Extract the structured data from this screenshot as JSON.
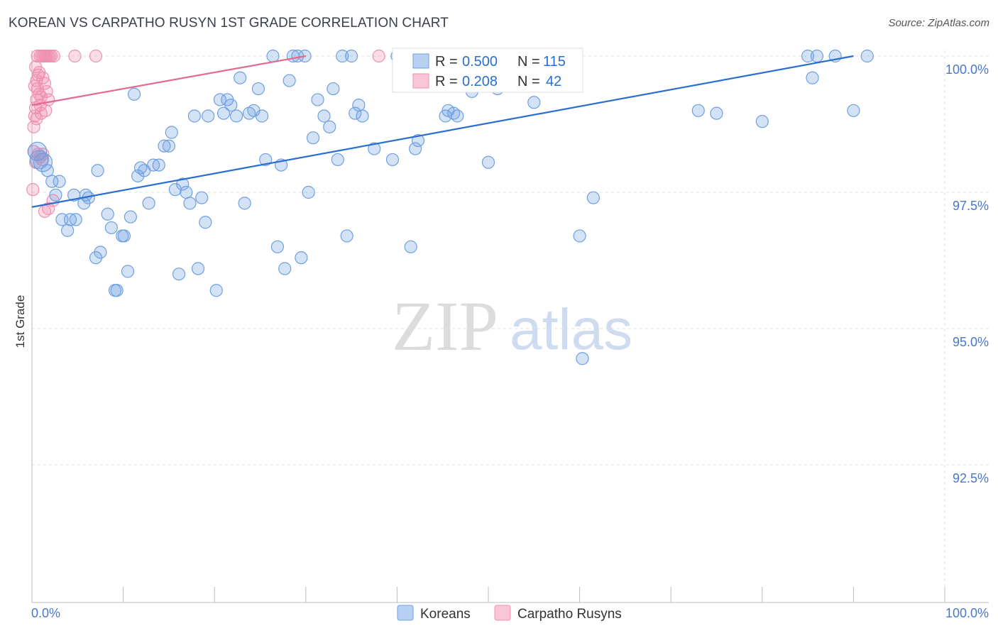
{
  "chart_data": {
    "type": "scatter",
    "title": "KOREAN VS CARPATHO RUSYN 1ST GRADE CORRELATION CHART",
    "source": "Source: ZipAtlas.com",
    "watermark": {
      "zip": "ZIP",
      "atlas": "atlas"
    },
    "xlabel": "",
    "ylabel": "1st Grade",
    "xlim": [
      0,
      100
    ],
    "ylim": [
      90.3,
      100.2
    ],
    "x_tick_labels": [
      {
        "value": 0,
        "label": "0.0%"
      },
      {
        "value": 100,
        "label": "100.0%"
      }
    ],
    "x_minor_ticks": [
      0,
      10,
      20,
      30,
      40,
      50,
      60,
      70,
      80,
      90,
      100
    ],
    "y_ticks": [
      {
        "value": 100.0,
        "label": "100.0%"
      },
      {
        "value": 97.5,
        "label": "97.5%"
      },
      {
        "value": 95.0,
        "label": "95.0%"
      },
      {
        "value": 92.5,
        "label": "92.5%"
      }
    ],
    "grid": true,
    "stats": [
      {
        "r_label": "R = ",
        "r_value": "0.500",
        "n_label": "N = ",
        "n_value": "115"
      },
      {
        "r_label": "R = ",
        "r_value": "0.208",
        "n_label": "N = ",
        "n_value": "42"
      }
    ],
    "series": [
      {
        "name": "Koreans",
        "color": "#6fa0e0",
        "line_color": "#2a6fcf",
        "trend": {
          "x": [
            0,
            90
          ],
          "y": [
            97.23,
            100.0
          ]
        },
        "points": [
          [
            0.6,
            98.25
          ],
          [
            0.8,
            98.1
          ],
          [
            1.2,
            98.05
          ],
          [
            1.7,
            97.9
          ],
          [
            2.2,
            97.7
          ],
          [
            2.6,
            97.45
          ],
          [
            3.0,
            97.7
          ],
          [
            3.3,
            97.0
          ],
          [
            3.9,
            96.8
          ],
          [
            4.6,
            97.45
          ],
          [
            4.2,
            97.0
          ],
          [
            4.8,
            97.0
          ],
          [
            5.7,
            97.3
          ],
          [
            5.9,
            97.45
          ],
          [
            6.2,
            97.4
          ],
          [
            7.0,
            96.3
          ],
          [
            7.5,
            96.4
          ],
          [
            7.2,
            97.9
          ],
          [
            8.3,
            97.1
          ],
          [
            8.7,
            96.85
          ],
          [
            9.1,
            95.7
          ],
          [
            9.3,
            95.7
          ],
          [
            9.9,
            96.7
          ],
          [
            10.1,
            96.7
          ],
          [
            10.5,
            96.05
          ],
          [
            10.8,
            97.05
          ],
          [
            11.2,
            99.3
          ],
          [
            11.6,
            97.8
          ],
          [
            11.9,
            97.95
          ],
          [
            12.3,
            97.9
          ],
          [
            12.8,
            97.3
          ],
          [
            13.3,
            98.0
          ],
          [
            13.9,
            98.0
          ],
          [
            14.5,
            98.35
          ],
          [
            15.0,
            98.35
          ],
          [
            15.3,
            98.6
          ],
          [
            15.7,
            97.55
          ],
          [
            16.1,
            96.0
          ],
          [
            16.5,
            97.65
          ],
          [
            16.9,
            97.5
          ],
          [
            17.3,
            97.3
          ],
          [
            17.8,
            98.9
          ],
          [
            18.2,
            96.1
          ],
          [
            18.6,
            97.4
          ],
          [
            19.0,
            96.95
          ],
          [
            19.3,
            98.9
          ],
          [
            20.2,
            95.7
          ],
          [
            20.6,
            99.2
          ],
          [
            21.0,
            98.95
          ],
          [
            21.4,
            99.2
          ],
          [
            21.8,
            99.1
          ],
          [
            22.4,
            98.9
          ],
          [
            22.8,
            99.6
          ],
          [
            23.3,
            97.3
          ],
          [
            23.8,
            98.95
          ],
          [
            24.3,
            99.0
          ],
          [
            24.8,
            99.4
          ],
          [
            25.2,
            98.9
          ],
          [
            25.6,
            98.1
          ],
          [
            26.4,
            100.0
          ],
          [
            26.9,
            96.5
          ],
          [
            27.3,
            98.0
          ],
          [
            27.7,
            96.1
          ],
          [
            28.2,
            99.55
          ],
          [
            28.6,
            100.0
          ],
          [
            29.1,
            100.0
          ],
          [
            29.5,
            96.3
          ],
          [
            29.9,
            100.0
          ],
          [
            30.3,
            97.5
          ],
          [
            30.8,
            98.5
          ],
          [
            31.3,
            99.2
          ],
          [
            32.0,
            98.9
          ],
          [
            32.6,
            98.7
          ],
          [
            33.0,
            99.4
          ],
          [
            33.5,
            98.1
          ],
          [
            34.0,
            100.0
          ],
          [
            34.5,
            96.7
          ],
          [
            35.0,
            100.0
          ],
          [
            35.4,
            98.95
          ],
          [
            35.8,
            99.1
          ],
          [
            36.2,
            98.9
          ],
          [
            37.5,
            98.3
          ],
          [
            39.5,
            98.1
          ],
          [
            40.0,
            100.0
          ],
          [
            41.5,
            96.5
          ],
          [
            42.0,
            98.3
          ],
          [
            42.3,
            98.45
          ],
          [
            45.0,
            100.0
          ],
          [
            45.3,
            98.9
          ],
          [
            45.6,
            99.0
          ],
          [
            46.2,
            98.95
          ],
          [
            46.6,
            98.9
          ],
          [
            47.5,
            100.0
          ],
          [
            48.2,
            99.35
          ],
          [
            49.0,
            100.0
          ],
          [
            50.0,
            98.05
          ],
          [
            51.0,
            99.4
          ],
          [
            52.0,
            100.0
          ],
          [
            53.2,
            99.6
          ],
          [
            53.6,
            100.0
          ],
          [
            55.0,
            99.15
          ],
          [
            57.0,
            99.6
          ],
          [
            58.2,
            99.6
          ],
          [
            60.0,
            96.7
          ],
          [
            60.3,
            94.45
          ],
          [
            61.5,
            97.4
          ],
          [
            73.0,
            99.0
          ],
          [
            75.0,
            98.95
          ],
          [
            80.0,
            98.8
          ],
          [
            85.0,
            100.0
          ],
          [
            85.5,
            99.6
          ],
          [
            86.0,
            100.0
          ],
          [
            88.0,
            100.0
          ],
          [
            90.0,
            99.0
          ],
          [
            91.5,
            100.0
          ]
        ]
      },
      {
        "name": "Carpatho Rusyns",
        "color": "#f090b0",
        "line_color": "#e56a90",
        "trend": {
          "x": [
            0,
            30
          ],
          "y": [
            99.1,
            100.0
          ]
        },
        "points": [
          [
            0.1,
            97.55
          ],
          [
            0.2,
            98.7
          ],
          [
            0.3,
            98.9
          ],
          [
            0.4,
            99.05
          ],
          [
            0.5,
            99.2
          ],
          [
            0.6,
            99.4
          ],
          [
            0.5,
            99.55
          ],
          [
            0.7,
            99.65
          ],
          [
            0.8,
            99.3
          ],
          [
            0.9,
            99.1
          ],
          [
            1.0,
            98.95
          ],
          [
            0.4,
            99.8
          ],
          [
            0.6,
            100.0
          ],
          [
            0.9,
            100.0
          ],
          [
            1.1,
            100.0
          ],
          [
            1.3,
            100.0
          ],
          [
            1.5,
            100.0
          ],
          [
            1.7,
            100.0
          ],
          [
            1.9,
            100.0
          ],
          [
            2.1,
            100.0
          ],
          [
            2.4,
            100.0
          ],
          [
            1.2,
            99.6
          ],
          [
            1.4,
            99.5
          ],
          [
            1.6,
            99.35
          ],
          [
            1.8,
            99.2
          ],
          [
            0.7,
            98.2
          ],
          [
            0.9,
            98.15
          ],
          [
            1.1,
            98.1
          ],
          [
            1.4,
            97.15
          ],
          [
            1.8,
            97.2
          ],
          [
            2.3,
            97.35
          ],
          [
            0.3,
            99.45
          ],
          [
            0.5,
            98.85
          ],
          [
            0.8,
            99.7
          ],
          [
            1.0,
            99.25
          ],
          [
            4.7,
            100.0
          ],
          [
            7.0,
            100.0
          ],
          [
            38.0,
            100.0
          ],
          [
            0.2,
            98.25
          ],
          [
            0.4,
            98.05
          ],
          [
            1.2,
            98.2
          ],
          [
            1.5,
            99.0
          ]
        ]
      }
    ]
  }
}
